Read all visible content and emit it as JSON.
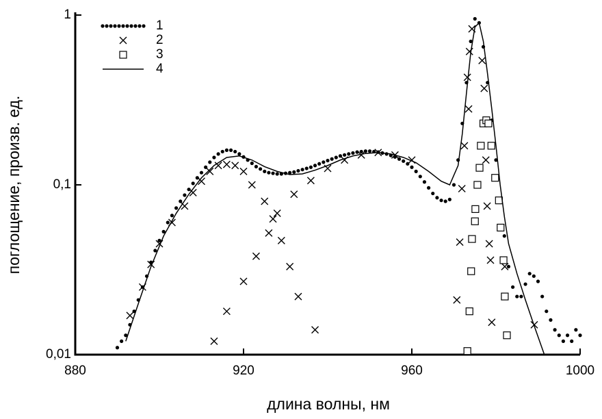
{
  "chart_data": {
    "type": "scatter",
    "x_label": "длина волны, нм",
    "y_label": "поглощение, произв. ед.",
    "xlim": [
      880,
      1000
    ],
    "xticks": [
      880,
      920,
      960,
      1000
    ],
    "ylim": [
      0.01,
      1
    ],
    "yticks": [
      {
        "value": 0.01,
        "label": "0,01"
      },
      {
        "value": 0.1,
        "label": "0,1"
      },
      1
    ],
    "y_scale": "log",
    "legend": "upper left",
    "series": [
      {
        "name": "1",
        "marker": "dot",
        "color": "#000000",
        "x": [
          890,
          891,
          892,
          893,
          894,
          895,
          896,
          897,
          898,
          899,
          900,
          901,
          902,
          903,
          904,
          905,
          906,
          907,
          908,
          909,
          910,
          911,
          912,
          913,
          914,
          915,
          916,
          917,
          918,
          919,
          920,
          921,
          922,
          923,
          924,
          925,
          926,
          927,
          928,
          929,
          930,
          931,
          932,
          933,
          934,
          935,
          936,
          937,
          938,
          939,
          940,
          941,
          942,
          943,
          944,
          945,
          946,
          947,
          948,
          949,
          950,
          951,
          952,
          953,
          954,
          955,
          956,
          957,
          958,
          959,
          960,
          961,
          962,
          963,
          964,
          965,
          966,
          967,
          968,
          969,
          970,
          971,
          972,
          973,
          974,
          975,
          976,
          977,
          978,
          979,
          980,
          981,
          982,
          983,
          984,
          985,
          986,
          987,
          988,
          989,
          990,
          991,
          992,
          993,
          994,
          995,
          996,
          997,
          998,
          999,
          1000
        ],
        "values": [
          0.011,
          0.012,
          0.013,
          0.015,
          0.018,
          0.021,
          0.025,
          0.029,
          0.035,
          0.041,
          0.047,
          0.053,
          0.06,
          0.066,
          0.073,
          0.08,
          0.087,
          0.094,
          0.102,
          0.11,
          0.118,
          0.127,
          0.136,
          0.145,
          0.152,
          0.157,
          0.16,
          0.16,
          0.157,
          0.152,
          0.146,
          0.14,
          0.134,
          0.128,
          0.124,
          0.12,
          0.118,
          0.117,
          0.116,
          0.116,
          0.117,
          0.118,
          0.119,
          0.121,
          0.123,
          0.125,
          0.127,
          0.13,
          0.133,
          0.136,
          0.139,
          0.142,
          0.145,
          0.148,
          0.15,
          0.152,
          0.154,
          0.156,
          0.157,
          0.158,
          0.158,
          0.157,
          0.156,
          0.154,
          0.152,
          0.149,
          0.146,
          0.142,
          0.138,
          0.133,
          0.127,
          0.12,
          0.112,
          0.104,
          0.096,
          0.089,
          0.084,
          0.081,
          0.08,
          0.082,
          0.1,
          0.14,
          0.23,
          0.4,
          0.7,
          0.95,
          0.9,
          0.65,
          0.4,
          0.24,
          0.14,
          0.08,
          0.05,
          0.033,
          0.025,
          0.022,
          0.022,
          0.026,
          0.03,
          0.029,
          0.027,
          0.022,
          0.018,
          0.016,
          0.014,
          0.013,
          0.012,
          0.013,
          0.012,
          0.014,
          0.013
        ]
      },
      {
        "name": "2",
        "marker": "x",
        "color": "#000000",
        "x": [
          893,
          896,
          898,
          900,
          903,
          906,
          908,
          910,
          912,
          914,
          916,
          918,
          920,
          922,
          925,
          927,
          929,
          931,
          933,
          937,
          913,
          916,
          920,
          923,
          926,
          928,
          932,
          936,
          940,
          944,
          948,
          952,
          956,
          960,
          970.7,
          971.4,
          971.9,
          972.5,
          973.2,
          973.5,
          973.7,
          974.3,
          976.7,
          977.2,
          977.6,
          977.9,
          978.4,
          978.7,
          979,
          982.1,
          989.1
        ],
        "values": [
          0.017,
          0.025,
          0.034,
          0.045,
          0.06,
          0.075,
          0.09,
          0.105,
          0.12,
          0.13,
          0.132,
          0.13,
          0.12,
          0.1,
          0.08,
          0.063,
          0.047,
          0.033,
          0.022,
          0.014,
          0.012,
          0.018,
          0.027,
          0.038,
          0.052,
          0.068,
          0.088,
          0.106,
          0.125,
          0.14,
          0.15,
          0.155,
          0.15,
          0.14,
          0.021,
          0.046,
          0.095,
          0.17,
          0.43,
          0.28,
          0.61,
          0.83,
          0.54,
          0.37,
          0.14,
          0.075,
          0.045,
          0.036,
          0.0155,
          0.033,
          0.015
        ]
      },
      {
        "name": "3",
        "marker": "square",
        "color": "#000000",
        "x": [
          973.2,
          973.7,
          974.1,
          974.3,
          975,
          975.1,
          975.6,
          976.1,
          976.4,
          977,
          977.7,
          978.2,
          978.9,
          979.8,
          980.7,
          981.1,
          981.8,
          982.1,
          982.6
        ],
        "values": [
          0.0105,
          0.018,
          0.031,
          0.048,
          0.061,
          0.072,
          0.1,
          0.126,
          0.17,
          0.23,
          0.24,
          0.23,
          0.17,
          0.11,
          0.081,
          0.056,
          0.036,
          0.022,
          0.013
        ]
      },
      {
        "name": "4",
        "marker": "line",
        "color": "#000000",
        "x": [
          892,
          895,
          898,
          901,
          904,
          907,
          910,
          913,
          916,
          919,
          922,
          925,
          928,
          931,
          934,
          937,
          940,
          943,
          946,
          949,
          952,
          955,
          958,
          961,
          964,
          967,
          969,
          971,
          972,
          973,
          974,
          975,
          976,
          977,
          978,
          979,
          980,
          981,
          982,
          983,
          985,
          987,
          989,
          991.5
        ],
        "values": [
          0.012,
          0.02,
          0.033,
          0.05,
          0.068,
          0.088,
          0.11,
          0.13,
          0.145,
          0.148,
          0.14,
          0.128,
          0.12,
          0.115,
          0.116,
          0.122,
          0.13,
          0.14,
          0.148,
          0.153,
          0.155,
          0.152,
          0.145,
          0.135,
          0.12,
          0.105,
          0.1,
          0.13,
          0.2,
          0.35,
          0.6,
          0.85,
          0.9,
          0.7,
          0.45,
          0.28,
          0.17,
          0.1,
          0.065,
          0.045,
          0.03,
          0.021,
          0.015,
          0.01
        ]
      }
    ]
  }
}
